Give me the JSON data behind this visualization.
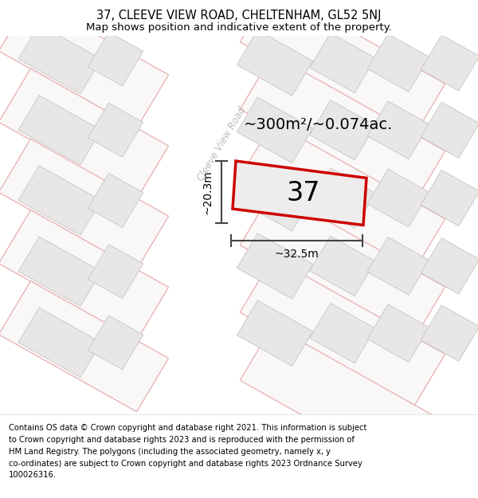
{
  "title_line1": "37, CLEEVE VIEW ROAD, CHELTENHAM, GL52 5NJ",
  "title_line2": "Map shows position and indicative extent of the property.",
  "footer_lines": [
    "Contains OS data © Crown copyright and database right 2021. This information is subject",
    "to Crown copyright and database rights 2023 and is reproduced with the permission of",
    "HM Land Registry. The polygons (including the associated geometry, namely x, y",
    "co-ordinates) are subject to Crown copyright and database rights 2023 Ordnance Survey",
    "100026316."
  ],
  "area_label": "~300m²/~0.074ac.",
  "number_label": "37",
  "dim_width": "~32.5m",
  "dim_height": "~20.3m",
  "road_label": "Cleeve View Road",
  "map_bg": "#f9f7f7",
  "building_fill": "#e8e6e6",
  "building_edge_pink": "#e8b0b0",
  "building_edge_grey": "#c8c4c4",
  "plot_edge_color": "#cc0000",
  "plot_fill": "#eeecec",
  "dim_line_color": "#444444",
  "road_text_color": "#bbbbbb",
  "title_fontsize": 10.5,
  "subtitle_fontsize": 9.5,
  "footer_fontsize": 7.2,
  "area_fontsize": 14,
  "number_fontsize": 24,
  "dim_fontsize": 10,
  "road_fontsize": 8.5
}
